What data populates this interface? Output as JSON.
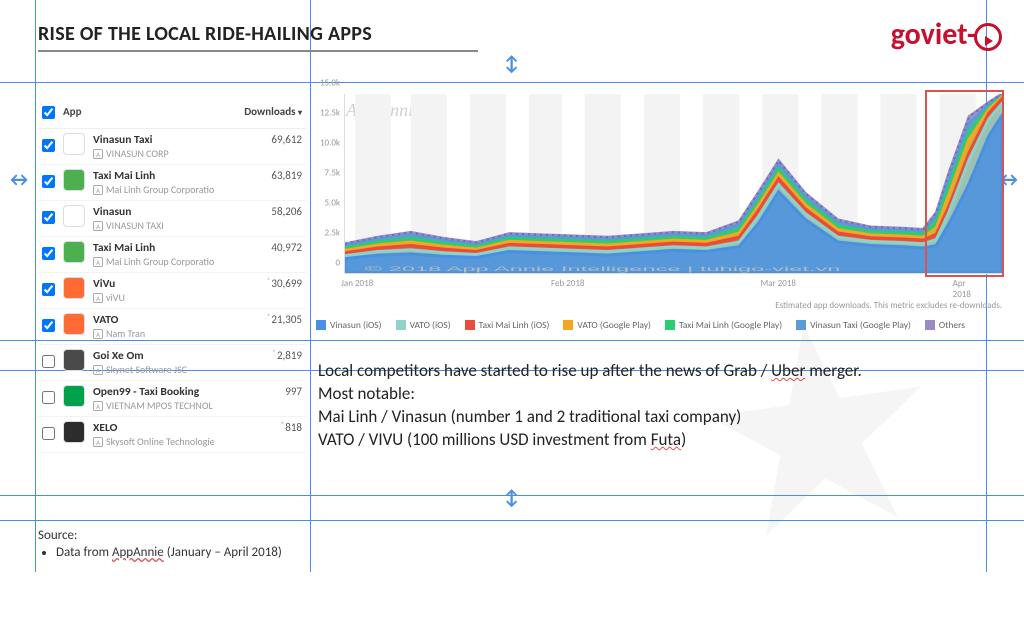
{
  "title": "RISE OF THE LOCAL RIDE-HAILING APPS",
  "logo_text": "goviet",
  "guides": {
    "color": "#4a90e2",
    "h_lines": [
      82,
      340,
      370,
      495,
      520
    ],
    "v_lines": [
      35,
      310,
      986
    ]
  },
  "table": {
    "header_app": "App",
    "header_downloads": "Downloads",
    "rows": [
      {
        "checked": true,
        "name": "Vinasun Taxi",
        "publisher": "VINASUN CORP",
        "downloads": "69,612",
        "starred": false,
        "icon_bg": "#ffffff",
        "icon_fg": "#00a14b"
      },
      {
        "checked": true,
        "name": "Taxi Mai Linh",
        "publisher": "Mai Linh Group Corporatio",
        "downloads": "63,819",
        "starred": false,
        "icon_bg": "#4caf50",
        "icon_fg": "#ffffff"
      },
      {
        "checked": true,
        "name": "Vinasun",
        "publisher": "VINASUN TAXI",
        "downloads": "58,206",
        "starred": false,
        "icon_bg": "#ffffff",
        "icon_fg": "#00a14b"
      },
      {
        "checked": true,
        "name": "Taxi Mai Linh",
        "publisher": "Mai Linh Group Corporatio",
        "downloads": "40,972",
        "starred": false,
        "icon_bg": "#4caf50",
        "icon_fg": "#ffffff"
      },
      {
        "checked": true,
        "name": "ViVu",
        "publisher": "viVU",
        "downloads": "30,699",
        "starred": true,
        "icon_bg": "#ff6b35",
        "icon_fg": "#ffffff"
      },
      {
        "checked": true,
        "name": "VATO",
        "publisher": "Nam Tran",
        "downloads": "21,305",
        "starred": true,
        "icon_bg": "#ff6b35",
        "icon_fg": "#ffffff"
      },
      {
        "checked": false,
        "name": "Goi Xe Om",
        "publisher": "Skynet Software JSC",
        "downloads": "2,819",
        "starred": true,
        "icon_bg": "#4a4a4a",
        "icon_fg": "#f5d547"
      },
      {
        "checked": false,
        "name": "Open99 - Taxi Booking",
        "publisher": "VIETNAM MPOS TECHNOL",
        "downloads": "997",
        "starred": false,
        "icon_bg": "#00a14b",
        "icon_fg": "#ffffff"
      },
      {
        "checked": false,
        "name": "XELO",
        "publisher": "Skysoft Online Technologie",
        "downloads": "818",
        "starred": true,
        "icon_bg": "#2c2c2c",
        "icon_fg": "#ffffff"
      }
    ]
  },
  "chart": {
    "watermark": "App Annie",
    "attribution": "© 2018 App Annie Intelligence | tuhigo-viet.vn",
    "type": "stacked-area",
    "ylim": [
      0,
      15000
    ],
    "yticks": [
      0,
      2500,
      5000,
      7500,
      10000,
      12500,
      15000
    ],
    "ytick_labels": [
      "0",
      "2.5k",
      "5.0k",
      "7.5k",
      "10.0k",
      "12.5k",
      "15.0k"
    ],
    "xticks": [
      "Jan 2018",
      "Feb 2018",
      "Mar 2018",
      "Apr 2018"
    ],
    "xtick_positions": [
      0.02,
      0.34,
      0.66,
      0.95
    ],
    "highlight_start": 0.88,
    "footer": "Estimated app downloads. This metric excludes re-downloads.",
    "font_size_axis": 9,
    "background_color": "#ffffff",
    "grid_color": "#eeeeee",
    "shaded_bands": [
      [
        0.015,
        0.07
      ],
      [
        0.1,
        0.155
      ],
      [
        0.19,
        0.245
      ],
      [
        0.28,
        0.33
      ],
      [
        0.365,
        0.42
      ],
      [
        0.455,
        0.51
      ],
      [
        0.545,
        0.6
      ],
      [
        0.635,
        0.69
      ],
      [
        0.725,
        0.78
      ],
      [
        0.815,
        0.87
      ],
      [
        0.905,
        0.96
      ]
    ],
    "shaded_band_color": "#f3f3f3",
    "series": [
      {
        "label": "Vinasun (iOS)",
        "color": "#4a90e2",
        "cumulative": true
      },
      {
        "label": "VATO (iOS)",
        "color": "#8dd3c7",
        "cumulative": true
      },
      {
        "label": "Taxi Mai Linh (iOS)",
        "color": "#e74c3c",
        "cumulative": true
      },
      {
        "label": "VATO (Google Play)",
        "color": "#f5a623",
        "cumulative": true
      },
      {
        "label": "Taxi Mai Linh (Google Play)",
        "color": "#2ecc71",
        "cumulative": true
      },
      {
        "label": "Vinasun Taxi (Google Play)",
        "color": "#5b9bd5",
        "cumulative": true
      },
      {
        "label": "Others",
        "color": "#9b8bc4",
        "cumulative": true
      }
    ],
    "x_samples": [
      0.0,
      0.05,
      0.1,
      0.15,
      0.2,
      0.25,
      0.3,
      0.35,
      0.4,
      0.45,
      0.5,
      0.55,
      0.6,
      0.63,
      0.66,
      0.7,
      0.75,
      0.8,
      0.85,
      0.88,
      0.9,
      0.92,
      0.95,
      0.98,
      1.0
    ],
    "stacked_totals": {
      "vinasun_ios": [
        1200,
        1500,
        1600,
        1400,
        1300,
        1800,
        1700,
        1600,
        1500,
        1700,
        1900,
        1800,
        2200,
        4200,
        6800,
        4500,
        2600,
        2300,
        2200,
        2100,
        2300,
        4200,
        7500,
        11500,
        13200
      ],
      "vato_ios": [
        1450,
        1800,
        1950,
        1700,
        1550,
        2100,
        2000,
        1900,
        1800,
        2000,
        2200,
        2100,
        2600,
        4800,
        7400,
        5000,
        3000,
        2650,
        2550,
        2450,
        2800,
        5200,
        9500,
        12900,
        14200
      ],
      "mailinh_ios": [
        1700,
        2100,
        2300,
        2000,
        1800,
        2400,
        2300,
        2200,
        2100,
        2300,
        2500,
        2400,
        3000,
        5300,
        7900,
        5400,
        3350,
        2950,
        2850,
        2750,
        3250,
        5700,
        10100,
        13400,
        14600
      ],
      "vato_gp": [
        1900,
        2350,
        2600,
        2250,
        2000,
        2650,
        2550,
        2450,
        2350,
        2550,
        2750,
        2650,
        3350,
        5700,
        8300,
        5750,
        3650,
        3200,
        3100,
        3000,
        3800,
        6700,
        11200,
        13700,
        14750
      ],
      "mailinh_gp": [
        2100,
        2600,
        2900,
        2500,
        2200,
        2900,
        2800,
        2700,
        2600,
        2800,
        3000,
        2900,
        3700,
        6100,
        8700,
        6100,
        3950,
        3450,
        3350,
        3250,
        4300,
        7400,
        11900,
        13900,
        14850
      ],
      "vinasun_gp": [
        2300,
        2850,
        3200,
        2750,
        2400,
        3150,
        3050,
        2950,
        2850,
        3050,
        3250,
        3150,
        4050,
        6500,
        9100,
        6450,
        4250,
        3700,
        3600,
        3500,
        4800,
        8100,
        12600,
        14100,
        14950
      ],
      "others": [
        2450,
        3000,
        3400,
        2900,
        2550,
        3300,
        3200,
        3100,
        3000,
        3200,
        3400,
        3300,
        4300,
        6800,
        9400,
        6700,
        4450,
        3850,
        3750,
        3650,
        5050,
        8500,
        13100,
        14300,
        15000
      ]
    }
  },
  "body_text": {
    "line1_a": "Local competitors have started to rise up after the news of Grab / ",
    "line1_uber": "Uber",
    "line1_b": " merger.",
    "line2": "Most notable:",
    "line3": "Mai Linh / Vinasun (number 1 and 2 traditional taxi company)",
    "line4_a": "VATO / VIVU (100 millions USD investment from ",
    "line4_futa": "Futa",
    "line4_b": ")"
  },
  "source": {
    "label": "Source:",
    "item_a": "Data from ",
    "item_u": "AppAnnie",
    "item_b": " (January – April 2018)"
  }
}
